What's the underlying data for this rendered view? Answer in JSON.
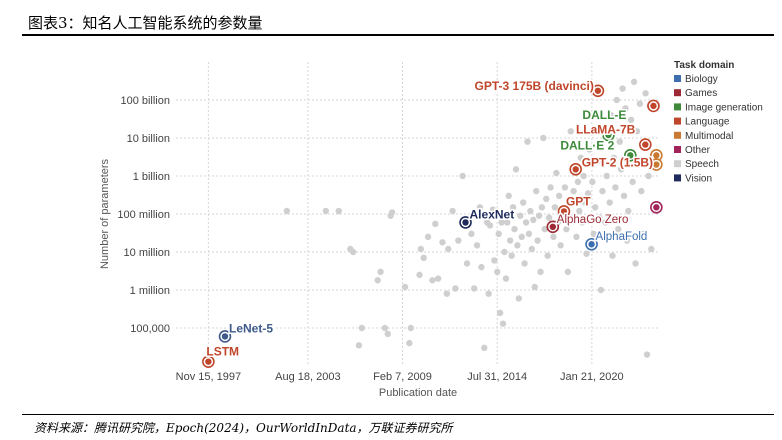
{
  "header": {
    "title": "图表3：知名人工智能系统的参数量"
  },
  "footer": {
    "source": "资料来源：腾讯研究院，Epoch(2024)，OurWorldInData，万联证券研究所"
  },
  "chart_data": {
    "type": "scatter",
    "xlabel": "Publication date",
    "ylabel": "Number of parameters",
    "y_scale": "log",
    "ylim": [
      10000,
      1000000000000
    ],
    "xlim": [
      "1996-01-01",
      "2023-12-31"
    ],
    "x_ticks": [
      {
        "date": "1997-11-15",
        "label": "Nov 15, 1997"
      },
      {
        "date": "2003-08-18",
        "label": "Aug 18, 2003"
      },
      {
        "date": "2009-02-07",
        "label": "Feb 7, 2009"
      },
      {
        "date": "2014-07-31",
        "label": "Jul 31, 2014"
      },
      {
        "date": "2020-01-21",
        "label": "Jan 21, 2020"
      }
    ],
    "y_ticks": [
      {
        "value": 100000,
        "label": "100,000"
      },
      {
        "value": 1000000,
        "label": "1 million"
      },
      {
        "value": 10000000,
        "label": "10 million"
      },
      {
        "value": 100000000,
        "label": "100 million"
      },
      {
        "value": 1000000000,
        "label": "1 billion"
      },
      {
        "value": 10000000000,
        "label": "10 billion"
      },
      {
        "value": 100000000000,
        "label": "100 billion"
      }
    ],
    "legend": {
      "title": "Task domain",
      "placement": "right",
      "items": [
        {
          "name": "Biology",
          "color": "#3d6fb0"
        },
        {
          "name": "Games",
          "color": "#9b2a35"
        },
        {
          "name": "Image generation",
          "color": "#3e8a3b"
        },
        {
          "name": "Language",
          "color": "#c0462b"
        },
        {
          "name": "Multimodal",
          "color": "#c97a32"
        },
        {
          "name": "Other",
          "color": "#a0235a"
        },
        {
          "name": "Speech",
          "color": "#cfcfcf"
        },
        {
          "name": "Vision",
          "color": "#1e2b5c"
        }
      ]
    },
    "highlighted": [
      {
        "label": "GPT-3 175B (davinci)",
        "date": "2020-05-28",
        "value": 175000000000,
        "domain": "Language",
        "color": "#c0462b"
      },
      {
        "label": "DALL-E",
        "date": "2021-01-05",
        "value": 12000000000,
        "domain": "Image generation",
        "color": "#3e8a3b"
      },
      {
        "label": "LLaMA-7B",
        "date": "2023-02-24",
        "value": 6700000000,
        "domain": "Language",
        "color": "#c0462b"
      },
      {
        "label": "DALL·E 2",
        "date": "2022-04-13",
        "value": 3500000000,
        "domain": "Image generation",
        "color": "#3e8a3b"
      },
      {
        "label": "GPT-2 (1.5B)",
        "date": "2019-02-14",
        "value": 1500000000,
        "domain": "Language",
        "color": "#c0462b"
      },
      {
        "label": "GPT",
        "date": "2018-06-11",
        "value": 117000000,
        "domain": "Language",
        "color": "#c0462b"
      },
      {
        "label": "AlphaGo Zero",
        "date": "2017-10-18",
        "value": 46000000,
        "domain": "Games",
        "color": "#9b2a35"
      },
      {
        "label": "AlphaFold",
        "date": "2020-01-15",
        "value": 16000000,
        "domain": "Biology",
        "color": "#3d6fb0"
      },
      {
        "label": "AlexNet",
        "date": "2012-09-30",
        "value": 60000000,
        "domain": "Vision",
        "color": "#1e2b5c"
      },
      {
        "label": "LeNet-5",
        "date": "1998-11-01",
        "value": 60000,
        "domain": "Vision",
        "color": "#3d5a8a"
      },
      {
        "label": "LSTM",
        "date": "1997-11-15",
        "value": 13000,
        "domain": "Language",
        "color": "#c0462b"
      }
    ],
    "other_points": [
      {
        "date": "2004-09-01",
        "value": 120000000
      },
      {
        "date": "2005-06-01",
        "value": 120000000
      },
      {
        "date": "2002-06-01",
        "value": 120000000
      },
      {
        "date": "2006-02-01",
        "value": 12000000
      },
      {
        "date": "2006-04-01",
        "value": 10000000
      },
      {
        "date": "2006-10-01",
        "value": 100000
      },
      {
        "date": "2006-08-01",
        "value": 35000
      },
      {
        "date": "2007-09-01",
        "value": 1800000
      },
      {
        "date": "2007-11-01",
        "value": 3000000
      },
      {
        "date": "2008-02-01",
        "value": 100000
      },
      {
        "date": "2008-04-01",
        "value": 70000
      },
      {
        "date": "2008-06-01",
        "value": 90000000
      },
      {
        "date": "2008-07-01",
        "value": 110000000
      },
      {
        "date": "2009-04-01",
        "value": 1200000
      },
      {
        "date": "2009-07-01",
        "value": 40000
      },
      {
        "date": "2009-08-01",
        "value": 100000
      },
      {
        "date": "2010-02-01",
        "value": 2500000
      },
      {
        "date": "2010-03-01",
        "value": 12000000
      },
      {
        "date": "2010-05-01",
        "value": 7000000
      },
      {
        "date": "2010-08-01",
        "value": 25000000
      },
      {
        "date": "2010-11-01",
        "value": 1800000
      },
      {
        "date": "2011-01-01",
        "value": 55000000
      },
      {
        "date": "2011-03-01",
        "value": 2000000
      },
      {
        "date": "2011-06-01",
        "value": 18000000
      },
      {
        "date": "2011-09-01",
        "value": 800000
      },
      {
        "date": "2011-10-01",
        "value": 12000000
      },
      {
        "date": "2012-01-01",
        "value": 120000000
      },
      {
        "date": "2012-03-01",
        "value": 1100000
      },
      {
        "date": "2012-05-01",
        "value": 20000000
      },
      {
        "date": "2012-08-01",
        "value": 1000000000
      },
      {
        "date": "2012-11-01",
        "value": 5000000
      },
      {
        "date": "2013-02-01",
        "value": 30000000
      },
      {
        "date": "2013-04-01",
        "value": 1100000
      },
      {
        "date": "2013-06-01",
        "value": 15000000
      },
      {
        "date": "2013-08-01",
        "value": 150000000
      },
      {
        "date": "2013-09-01",
        "value": 4000000
      },
      {
        "date": "2013-11-01",
        "value": 30000
      },
      {
        "date": "2014-01-01",
        "value": 60000000
      },
      {
        "date": "2014-02-01",
        "value": 800000
      },
      {
        "date": "2014-03-01",
        "value": 50000000
      },
      {
        "date": "2014-05-01",
        "value": 130000000
      },
      {
        "date": "2014-06-01",
        "value": 6000000
      },
      {
        "date": "2014-08-01",
        "value": 3000000
      },
      {
        "date": "2014-09-01",
        "value": 30000000
      },
      {
        "date": "2014-10-01",
        "value": 250000
      },
      {
        "date": "2014-11-01",
        "value": 60000000
      },
      {
        "date": "2014-12-01",
        "value": 130000
      },
      {
        "date": "2015-01-01",
        "value": 10000000
      },
      {
        "date": "2015-02-01",
        "value": 2000000
      },
      {
        "date": "2015-03-01",
        "value": 60000000
      },
      {
        "date": "2015-04-01",
        "value": 300000000
      },
      {
        "date": "2015-05-01",
        "value": 20000000
      },
      {
        "date": "2015-06-01",
        "value": 8000000
      },
      {
        "date": "2015-07-01",
        "value": 150000000
      },
      {
        "date": "2015-08-01",
        "value": 40000000
      },
      {
        "date": "2015-09-01",
        "value": 1500000000
      },
      {
        "date": "2015-10-01",
        "value": 15000000
      },
      {
        "date": "2015-11-01",
        "value": 600000
      },
      {
        "date": "2015-12-01",
        "value": 90000000
      },
      {
        "date": "2016-01-01",
        "value": 25000000
      },
      {
        "date": "2016-02-01",
        "value": 200000000
      },
      {
        "date": "2016-03-01",
        "value": 5000000
      },
      {
        "date": "2016-04-01",
        "value": 60000000
      },
      {
        "date": "2016-05-01",
        "value": 8000000000
      },
      {
        "date": "2016-06-01",
        "value": 30000000
      },
      {
        "date": "2016-07-01",
        "value": 120000000
      },
      {
        "date": "2016-08-01",
        "value": 12000000
      },
      {
        "date": "2016-09-01",
        "value": 70000000
      },
      {
        "date": "2016-10-01",
        "value": 1200000
      },
      {
        "date": "2016-11-01",
        "value": 400000000
      },
      {
        "date": "2016-12-01",
        "value": 20000000
      },
      {
        "date": "2017-01-01",
        "value": 90000000
      },
      {
        "date": "2017-02-01",
        "value": 3000000
      },
      {
        "date": "2017-03-01",
        "value": 150000000
      },
      {
        "date": "2017-04-01",
        "value": 10000000000
      },
      {
        "date": "2017-05-01",
        "value": 40000000
      },
      {
        "date": "2017-06-01",
        "value": 250000000
      },
      {
        "date": "2017-07-01",
        "value": 8000000
      },
      {
        "date": "2017-08-01",
        "value": 80000000
      },
      {
        "date": "2017-09-01",
        "value": 500000000
      },
      {
        "date": "2017-11-01",
        "value": 25000000
      },
      {
        "date": "2017-12-01",
        "value": 150000000
      },
      {
        "date": "2018-01-01",
        "value": 1200000000
      },
      {
        "date": "2018-02-01",
        "value": 60000000
      },
      {
        "date": "2018-03-01",
        "value": 300000000
      },
      {
        "date": "2018-04-01",
        "value": 15000000
      },
      {
        "date": "2018-05-01",
        "value": 90000000
      },
      {
        "date": "2018-07-01",
        "value": 500000000
      },
      {
        "date": "2018-08-01",
        "value": 40000000
      },
      {
        "date": "2018-09-01",
        "value": 3000000
      },
      {
        "date": "2018-10-01",
        "value": 200000000
      },
      {
        "date": "2018-11-01",
        "value": 15000000000
      },
      {
        "date": "2018-12-01",
        "value": 80000000
      },
      {
        "date": "2019-01-01",
        "value": 400000000
      },
      {
        "date": "2019-03-01",
        "value": 25000000
      },
      {
        "date": "2019-04-01",
        "value": 700000000
      },
      {
        "date": "2019-05-01",
        "value": 120000000
      },
      {
        "date": "2019-06-01",
        "value": 3000000000
      },
      {
        "date": "2019-07-01",
        "value": 60000000
      },
      {
        "date": "2019-08-01",
        "value": 1000000000
      },
      {
        "date": "2019-09-01",
        "value": 200000000
      },
      {
        "date": "2019-10-01",
        "value": 9000000
      },
      {
        "date": "2019-11-01",
        "value": 350000000
      },
      {
        "date": "2019-12-01",
        "value": 5000000000
      },
      {
        "date": "2020-02-01",
        "value": 700000000
      },
      {
        "date": "2020-03-01",
        "value": 30000000
      },
      {
        "date": "2020-04-01",
        "value": 150000000
      },
      {
        "date": "2020-06-01",
        "value": 2500000000
      },
      {
        "date": "2020-07-01",
        "value": 80000000
      },
      {
        "date": "2020-08-01",
        "value": 1000000
      },
      {
        "date": "2020-09-01",
        "value": 400000000
      },
      {
        "date": "2020-10-01",
        "value": 15000000000
      },
      {
        "date": "2020-11-01",
        "value": 60000000
      },
      {
        "date": "2020-12-01",
        "value": 1000000000
      },
      {
        "date": "2021-02-01",
        "value": 200000000
      },
      {
        "date": "2021-03-01",
        "value": 40000000000
      },
      {
        "date": "2021-04-01",
        "value": 8000000
      },
      {
        "date": "2021-05-01",
        "value": 3000000000
      },
      {
        "date": "2021-06-01",
        "value": 500000000
      },
      {
        "date": "2021-07-01",
        "value": 100000000000
      },
      {
        "date": "2021-08-01",
        "value": 40000000
      },
      {
        "date": "2021-09-01",
        "value": 8000000000
      },
      {
        "date": "2021-10-01",
        "value": 1500000000
      },
      {
        "date": "2021-11-01",
        "value": 200000000000
      },
      {
        "date": "2021-12-01",
        "value": 300000000
      },
      {
        "date": "2022-01-01",
        "value": 60000000000
      },
      {
        "date": "2022-02-01",
        "value": 20000000
      },
      {
        "date": "2022-03-01",
        "value": 120000000
      },
      {
        "date": "2022-05-01",
        "value": 30000000000
      },
      {
        "date": "2022-06-01",
        "value": 700000000
      },
      {
        "date": "2022-07-01",
        "value": 300000000000
      },
      {
        "date": "2022-08-01",
        "value": 5000000
      },
      {
        "date": "2022-09-01",
        "value": 15000000000
      },
      {
        "date": "2022-10-01",
        "value": 2000000000
      },
      {
        "date": "2022-11-01",
        "value": 80000000000
      },
      {
        "date": "2022-12-01",
        "value": 400000000
      },
      {
        "date": "2023-01-01",
        "value": 30000000
      },
      {
        "date": "2023-03-01",
        "value": 150000000000
      },
      {
        "date": "2023-04-01",
        "value": 20000
      },
      {
        "date": "2023-05-01",
        "value": 1000000000
      },
      {
        "date": "2023-06-01",
        "value": 70000000000
      },
      {
        "date": "2023-07-01",
        "value": 12000000
      }
    ],
    "edge_points": [
      {
        "date": "2023-08-15",
        "value": 70000000000,
        "color": "#c0462b"
      },
      {
        "date": "2023-10-15",
        "value": 3500000000,
        "color": "#c97a32"
      },
      {
        "date": "2023-10-15",
        "value": 2000000000,
        "color": "#c97a32"
      },
      {
        "date": "2023-10-15",
        "value": 150000000,
        "color": "#a0235a"
      }
    ]
  }
}
